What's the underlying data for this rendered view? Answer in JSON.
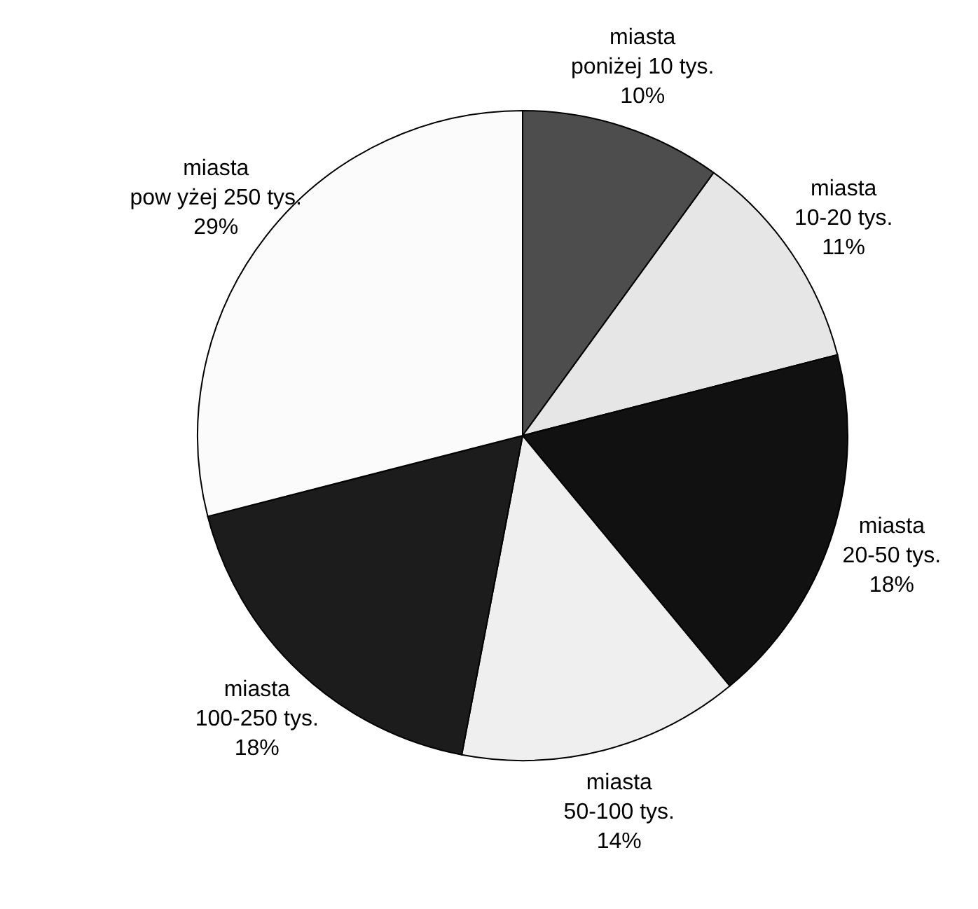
{
  "chart_data": {
    "type": "pie",
    "categories": [
      "miasta\nponiżej 10 tys.",
      "miasta\n10-20 tys.",
      "miasta\n20-50 tys.",
      "miasta\n50-100 tys.",
      "miasta\n100-250 tys.",
      "miasta\npow yżej 250 tys."
    ],
    "values": [
      10,
      11,
      18,
      14,
      18,
      29
    ],
    "value_labels": [
      "10%",
      "11%",
      "18%",
      "14%",
      "18%",
      "29%"
    ],
    "colors": [
      "#4d4d4d",
      "#e6e6e6",
      "#111111",
      "#efefef",
      "#1c1c1c",
      "#fbfbfb"
    ],
    "legend": false
  }
}
